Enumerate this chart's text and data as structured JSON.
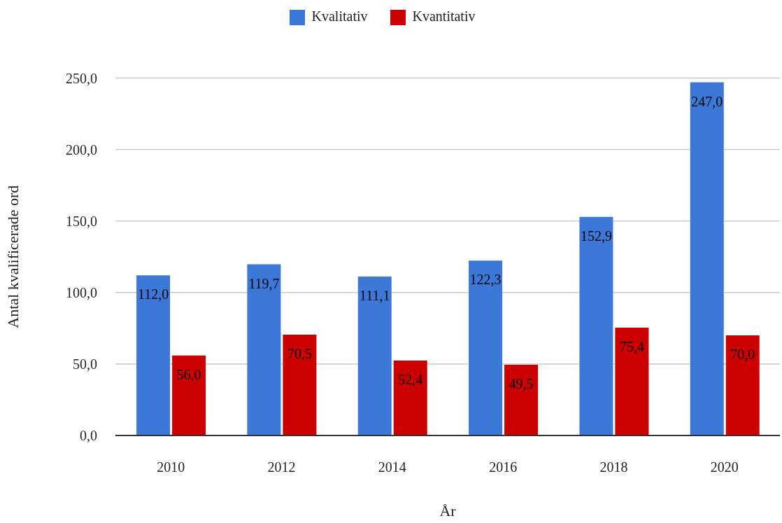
{
  "chart_data": {
    "type": "bar",
    "xlabel": "År",
    "ylabel": "Antal kvalificerade ord",
    "categories": [
      "2010",
      "2012",
      "2014",
      "2016",
      "2018",
      "2020"
    ],
    "series": [
      {
        "name": "Kvalitativ",
        "color": "#3c78d8",
        "values": [
          112.0,
          119.7,
          111.1,
          122.3,
          152.9,
          247.0
        ],
        "value_labels": [
          "112,0",
          "119,7",
          "111,1",
          "122,3",
          "152,9",
          "247,0"
        ]
      },
      {
        "name": "Kvantitativ",
        "color": "#cc0000",
        "values": [
          56.0,
          70.5,
          52.4,
          49.5,
          75.4,
          70.0
        ],
        "value_labels": [
          "56,0",
          "70,5",
          "52,4",
          "49,5",
          "75,4",
          "70,0"
        ]
      }
    ],
    "ylim": [
      0,
      250
    ],
    "yticks": [
      {
        "value": 0,
        "label": "0,0"
      },
      {
        "value": 50,
        "label": "50,0"
      },
      {
        "value": 100,
        "label": "100,0"
      },
      {
        "value": 150,
        "label": "150,0"
      },
      {
        "value": 200,
        "label": "200,0"
      },
      {
        "value": 250,
        "label": "250,0"
      }
    ],
    "grid": "y",
    "legend": "top"
  }
}
